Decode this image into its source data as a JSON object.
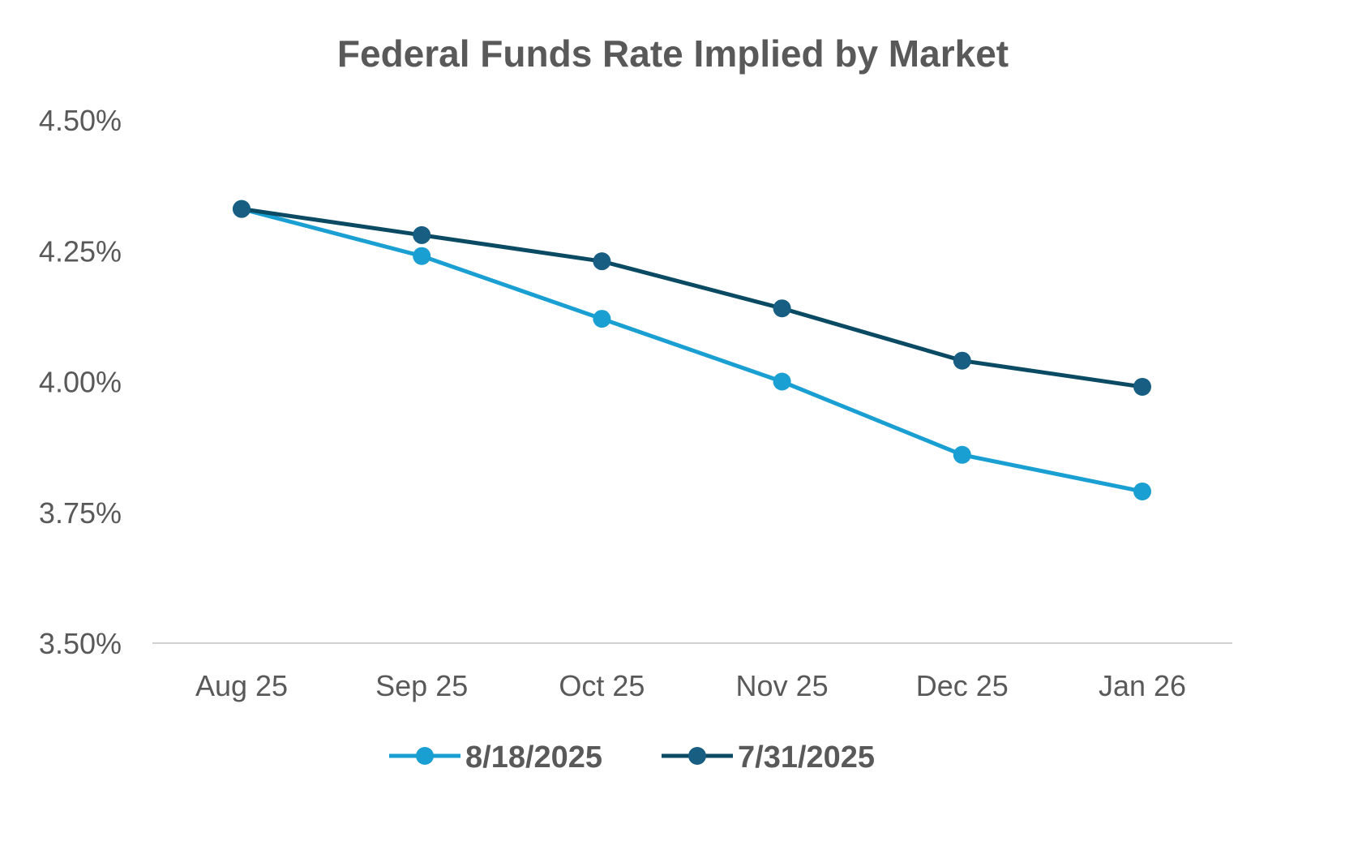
{
  "chart_data": {
    "type": "line",
    "title": "Federal Funds Rate Implied by Market",
    "xlabel": "",
    "ylabel": "",
    "categories": [
      "Aug 25",
      "Sep 25",
      "Oct 25",
      "Nov 25",
      "Dec 25",
      "Jan 26"
    ],
    "ylim": [
      3.5,
      4.5
    ],
    "yticks": [
      3.5,
      3.75,
      4.0,
      4.25,
      4.5
    ],
    "ytick_labels": [
      "3.50%",
      "3.75%",
      "4.00%",
      "4.25%",
      "4.50%"
    ],
    "grid": false,
    "legend_position": "bottom",
    "series": [
      {
        "name": "8/18/2025",
        "color": "#1a9fd2",
        "marker_color": "#1a9fd2",
        "values": [
          4.33,
          4.24,
          4.12,
          4.0,
          3.86,
          3.79
        ]
      },
      {
        "name": "7/31/2025",
        "color": "#0b4a63",
        "marker_color": "#175e82",
        "values": [
          4.33,
          4.28,
          4.23,
          4.14,
          4.04,
          3.99
        ]
      }
    ]
  }
}
